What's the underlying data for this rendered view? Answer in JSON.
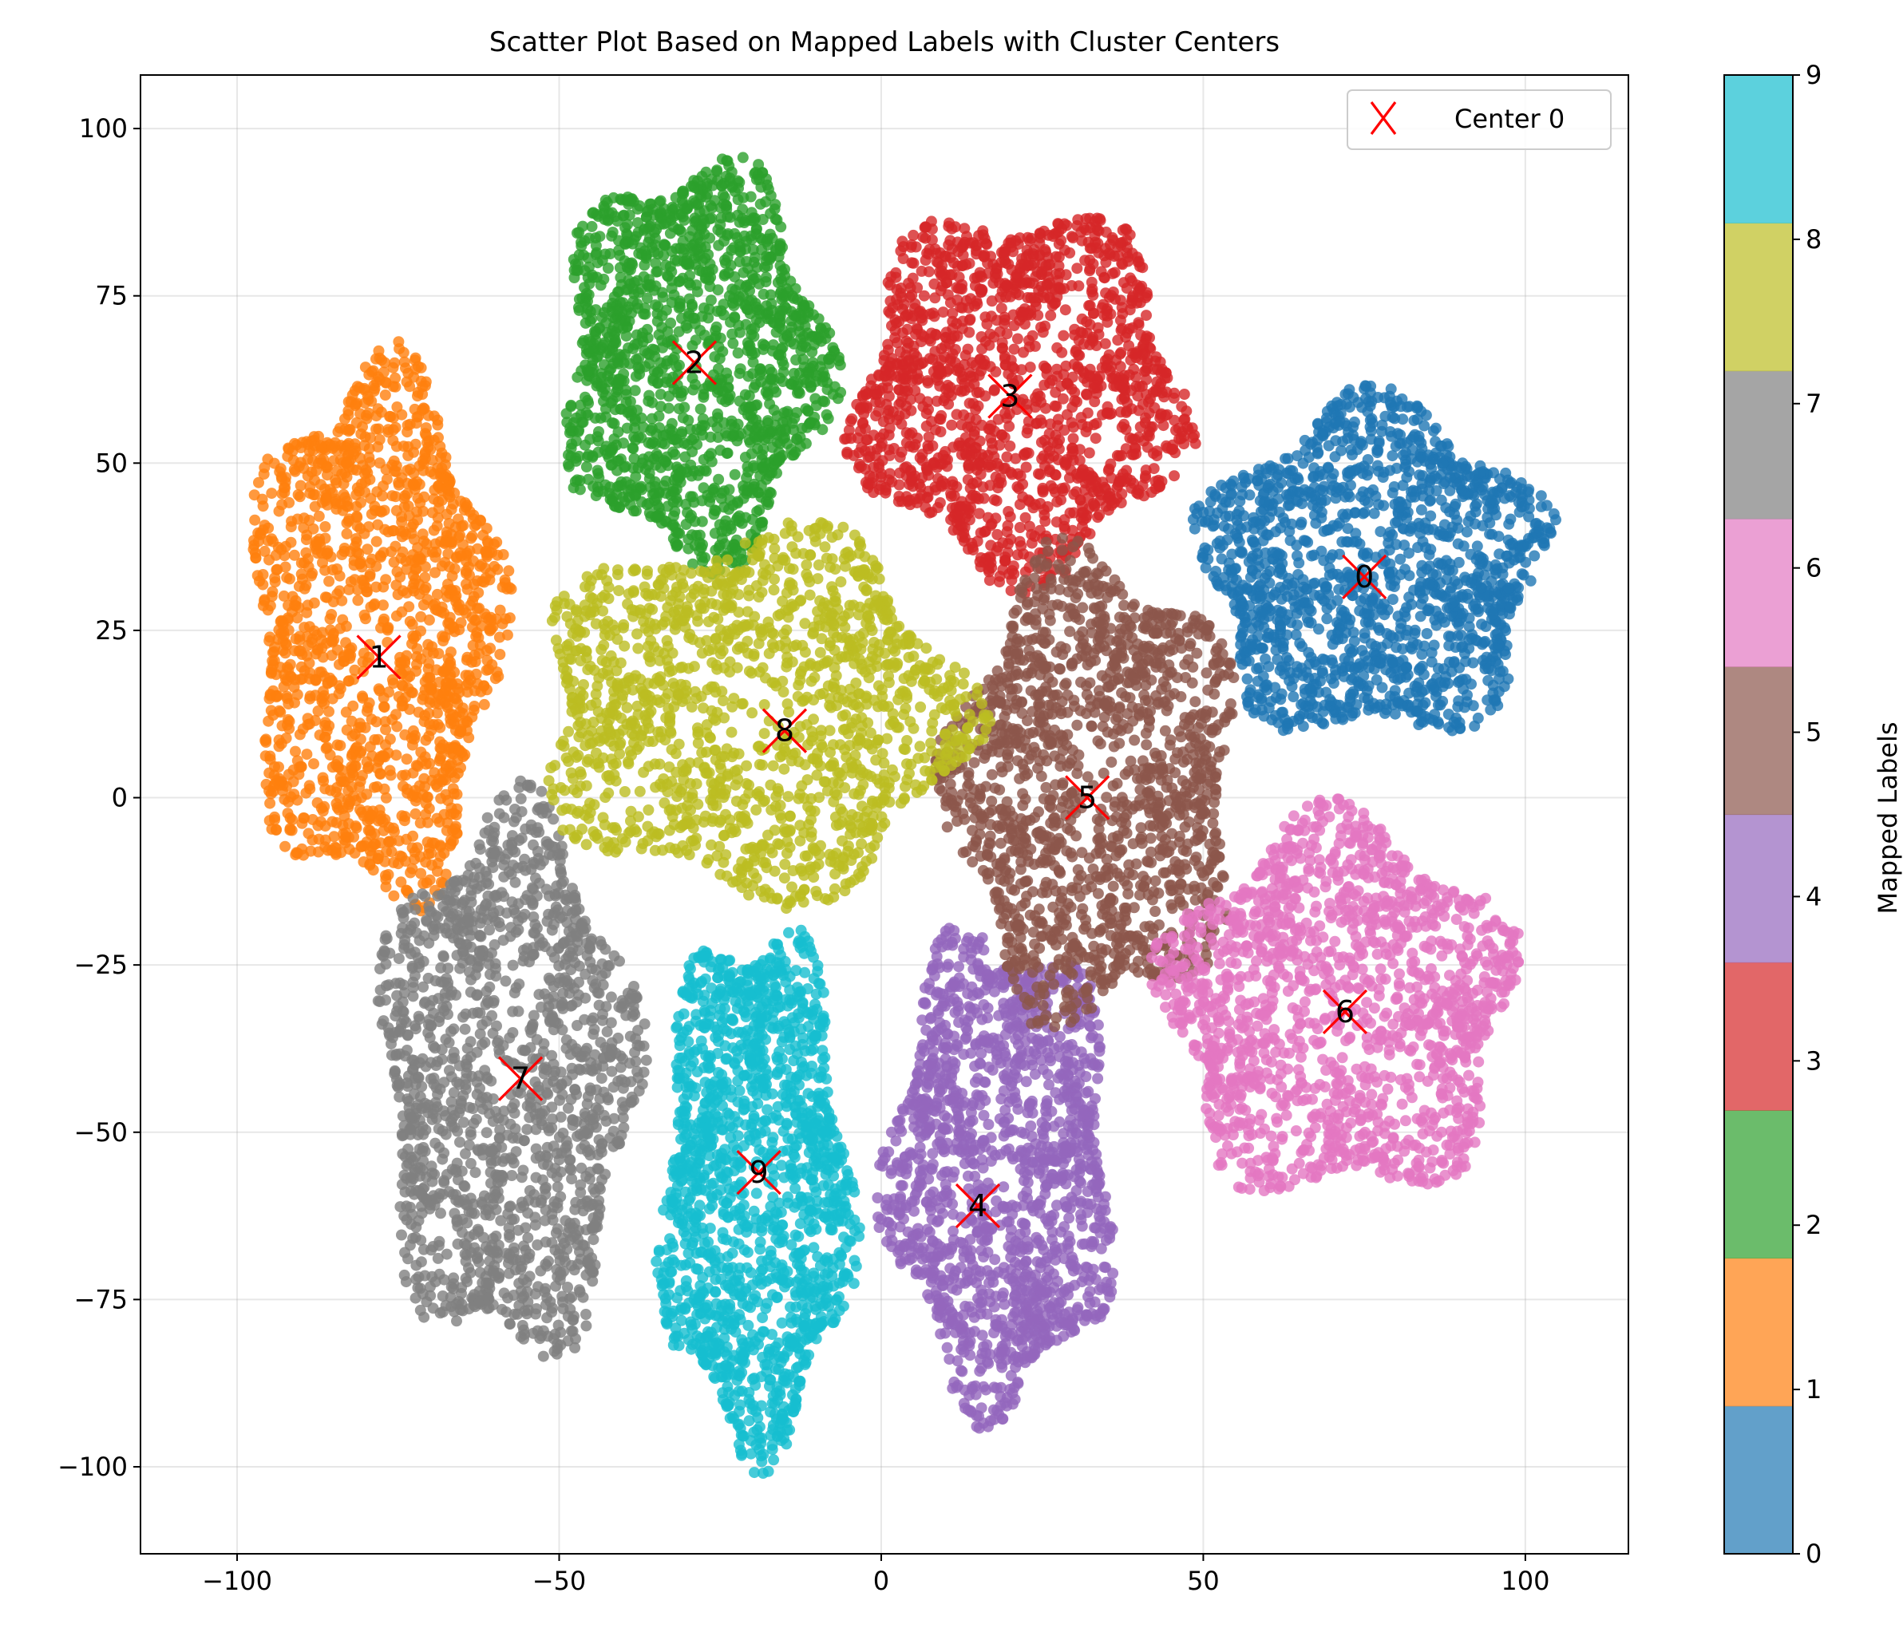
{
  "chart_data": {
    "type": "scatter",
    "title": "Scatter Plot Based on Mapped Labels with Cluster Centers",
    "xlabel": "",
    "ylabel": "",
    "xlim": [
      -115,
      116
    ],
    "ylim": [
      -113,
      108
    ],
    "xticks": [
      -100,
      -50,
      0,
      50,
      100
    ],
    "yticks": [
      -100,
      -75,
      -50,
      -25,
      0,
      25,
      50,
      75,
      100
    ],
    "xtick_labels": [
      "−100",
      "−50",
      "0",
      "50",
      "100"
    ],
    "ytick_labels": [
      "−100",
      "−75",
      "−50",
      "−25",
      "0",
      "25",
      "50",
      "75",
      "100"
    ],
    "grid": true,
    "legend": {
      "position": "upper right",
      "entries": [
        "Center 0"
      ],
      "marker": "x",
      "color": "#ff0000"
    },
    "colorbar": {
      "label": "Mapped Labels",
      "range": [
        0,
        9
      ],
      "ticks": [
        "0",
        "1",
        "2",
        "3",
        "4",
        "5",
        "6",
        "7",
        "8",
        "9"
      ],
      "colors": [
        "#1f77b4",
        "#ff7f0e",
        "#2ca02c",
        "#d62728",
        "#9467bd",
        "#8c564b",
        "#e377c2",
        "#7f7f7f",
        "#bcbd22",
        "#17becf"
      ],
      "alpha": 0.7
    },
    "clusters": [
      {
        "label": "0",
        "color": "#1f77b4",
        "center": [
          75,
          33
        ],
        "x_range": [
          47,
          106
        ],
        "y_range": [
          6,
          62
        ]
      },
      {
        "label": "1",
        "color": "#ff7f0e",
        "center": [
          -78,
          21
        ],
        "x_range": [
          -100,
          -57
        ],
        "y_range": [
          -20,
          69
        ]
      },
      {
        "label": "2",
        "color": "#2ca02c",
        "center": [
          -29,
          65
        ],
        "x_range": [
          -52,
          -6
        ],
        "y_range": [
          32,
          98
        ]
      },
      {
        "label": "3",
        "color": "#d62728",
        "center": [
          20,
          60
        ],
        "x_range": [
          -7,
          50
        ],
        "y_range": [
          30,
          91
        ]
      },
      {
        "label": "4",
        "color": "#9467bd",
        "center": [
          15,
          -61
        ],
        "x_range": [
          -1,
          38
        ],
        "y_range": [
          -95,
          -16
        ]
      },
      {
        "label": "5",
        "color": "#8c564b",
        "center": [
          32,
          0
        ],
        "x_range": [
          8,
          58
        ],
        "y_range": [
          -37,
          40
        ]
      },
      {
        "label": "6",
        "color": "#e377c2",
        "center": [
          72,
          -32
        ],
        "x_range": [
          41,
          101
        ],
        "y_range": [
          -63,
          0
        ]
      },
      {
        "label": "7",
        "color": "#7f7f7f",
        "center": [
          -56,
          -42
        ],
        "x_range": [
          -80,
          -36
        ],
        "y_range": [
          -88,
          3
        ]
      },
      {
        "label": "8",
        "color": "#bcbd22",
        "center": [
          -15,
          10
        ],
        "x_range": [
          -57,
          17
        ],
        "y_range": [
          -18,
          43
        ]
      },
      {
        "label": "9",
        "color": "#17becf",
        "center": [
          -19,
          -56
        ],
        "x_range": [
          -36,
          -3
        ],
        "y_range": [
          -102,
          -15
        ]
      }
    ]
  }
}
